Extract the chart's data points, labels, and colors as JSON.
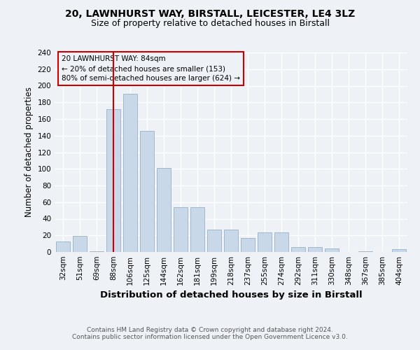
{
  "title1": "20, LAWNHURST WAY, BIRSTALL, LEICESTER, LE4 3LZ",
  "title2": "Size of property relative to detached houses in Birstall",
  "xlabel": "Distribution of detached houses by size in Birstall",
  "ylabel": "Number of detached properties",
  "categories": [
    "32sqm",
    "51sqm",
    "69sqm",
    "88sqm",
    "106sqm",
    "125sqm",
    "144sqm",
    "162sqm",
    "181sqm",
    "199sqm",
    "218sqm",
    "237sqm",
    "255sqm",
    "274sqm",
    "292sqm",
    "311sqm",
    "330sqm",
    "348sqm",
    "367sqm",
    "385sqm",
    "404sqm"
  ],
  "values": [
    13,
    19,
    1,
    172,
    190,
    146,
    101,
    54,
    54,
    27,
    27,
    17,
    24,
    24,
    6,
    6,
    4,
    0,
    1,
    0,
    3
  ],
  "bar_color": "#c8d8e8",
  "bar_edge_color": "#a0b8cc",
  "vline_index": 3.5,
  "property_line_label": "20 LAWNHURST WAY: 84sqm",
  "annotation_line1": "← 20% of detached houses are smaller (153)",
  "annotation_line2": "80% of semi-detached houses are larger (624) →",
  "vline_color": "#cc0000",
  "annotation_box_edge": "#cc0000",
  "ylim": [
    0,
    240
  ],
  "yticks": [
    0,
    20,
    40,
    60,
    80,
    100,
    120,
    140,
    160,
    180,
    200,
    220,
    240
  ],
  "footer1": "Contains HM Land Registry data © Crown copyright and database right 2024.",
  "footer2": "Contains public sector information licensed under the Open Government Licence v3.0.",
  "background_color": "#eef2f6",
  "grid_color": "#ffffff",
  "title1_fontsize": 10,
  "title2_fontsize": 9,
  "xlabel_fontsize": 9.5,
  "ylabel_fontsize": 8.5,
  "tick_fontsize": 7.5,
  "annotation_fontsize": 7.5,
  "footer_fontsize": 6.5
}
